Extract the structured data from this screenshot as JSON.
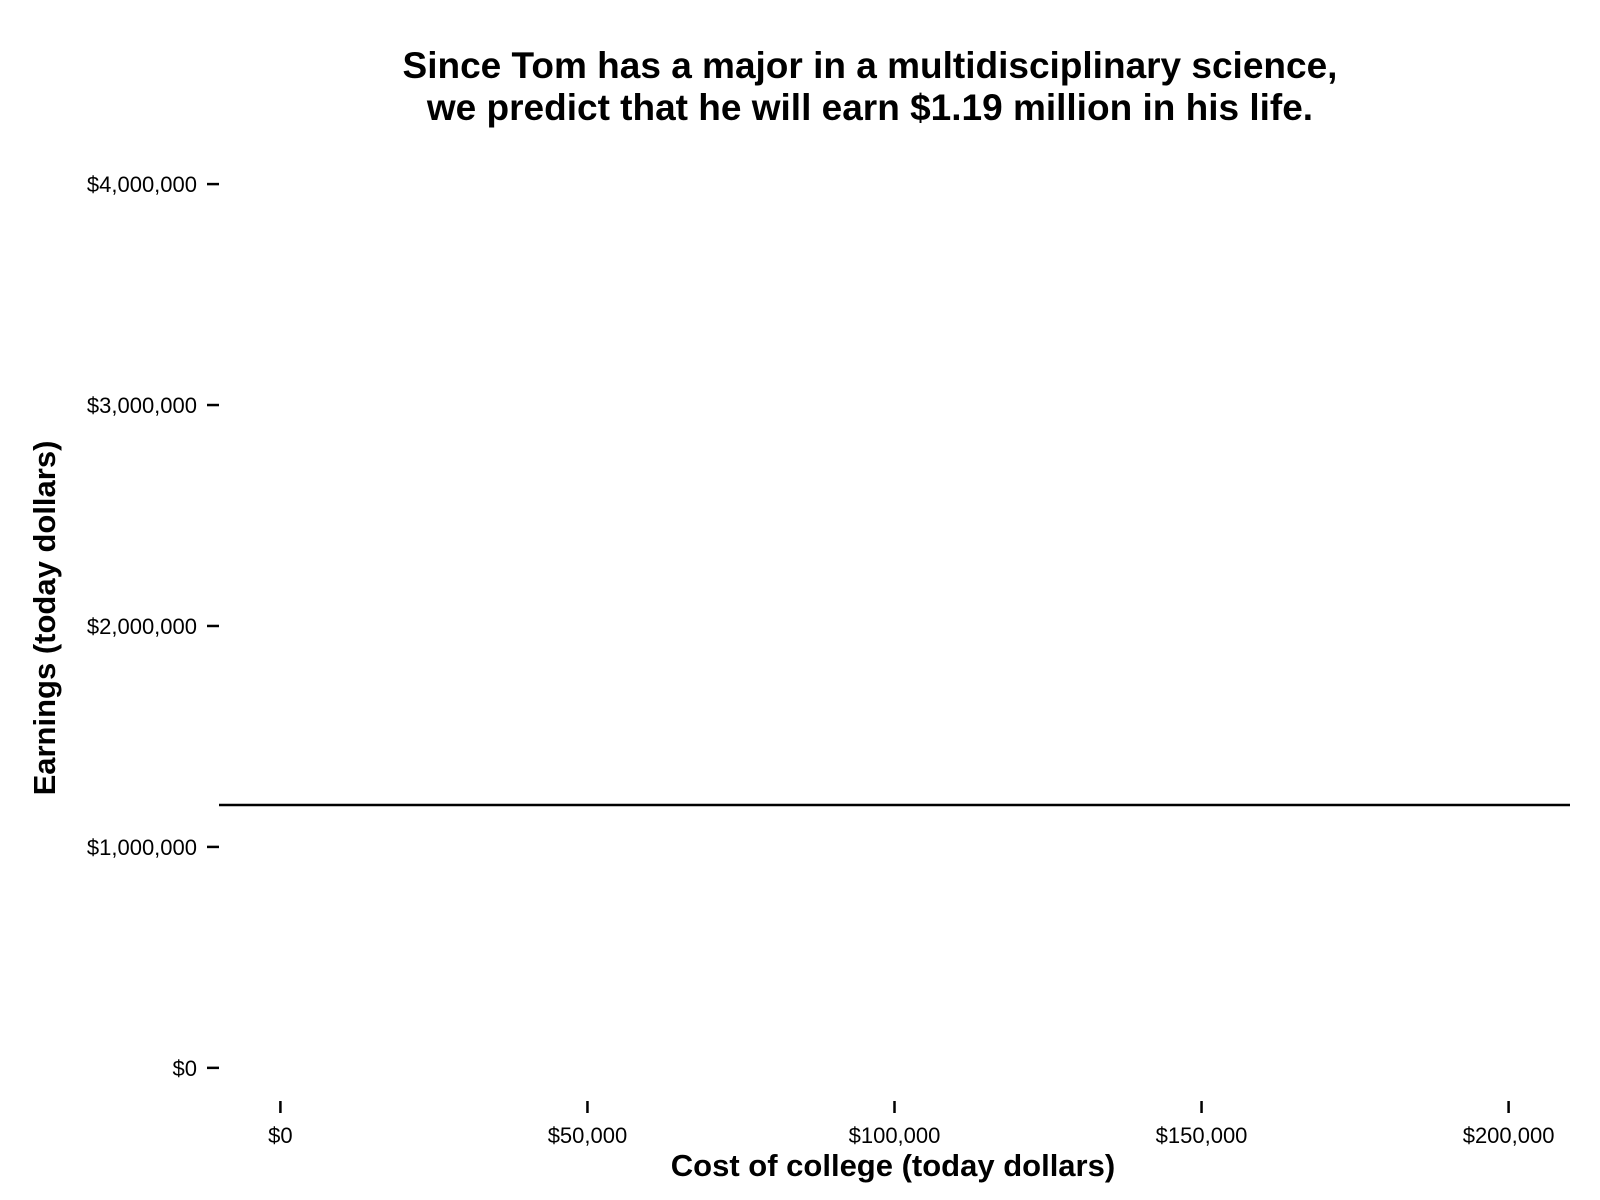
{
  "chart_data": {
    "type": "line",
    "title": [
      "Since Tom has a major in a multidisciplinary science,",
      "we predict that he will earn $1.19 million in his life."
    ],
    "xlabel": "Cost of college (today dollars)",
    "ylabel": "Earnings (today dollars)",
    "xlim": [
      -10000,
      210000
    ],
    "ylim": [
      -150000,
      4100000
    ],
    "x_ticks": [
      0,
      50000,
      100000,
      150000,
      200000
    ],
    "x_tick_labels": [
      "$0",
      "$50,000",
      "$100,000",
      "$150,000",
      "$200,000"
    ],
    "y_ticks": [
      0,
      1000000,
      2000000,
      3000000,
      4000000
    ],
    "y_tick_labels": [
      "$0",
      "$1,000,000",
      "$2,000,000",
      "$3,000,000",
      "$4,000,000"
    ],
    "series": [
      {
        "x": [
          -10000,
          210000
        ],
        "y": [
          1190000,
          1190000
        ]
      }
    ],
    "grid": false,
    "line_color": "#000000"
  }
}
